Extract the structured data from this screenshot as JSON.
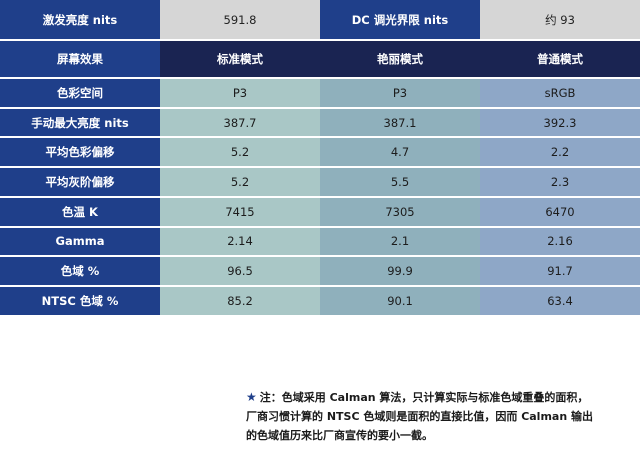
{
  "header": {
    "label1": "激发亮度 nits",
    "value1": "591.8",
    "label2": "DC 调光界限 nits",
    "value2": "约 93"
  },
  "modes": {
    "label": "屏幕效果",
    "values": [
      "标准模式",
      "艳丽模式",
      "普通模式"
    ]
  },
  "rows": [
    {
      "label": "色彩空间",
      "values": [
        "P3",
        "P3",
        "sRGB"
      ]
    },
    {
      "label": "手动最大亮度 nits",
      "values": [
        "387.7",
        "387.1",
        "392.3"
      ]
    },
    {
      "label": "平均色彩偏移",
      "values": [
        "5.2",
        "4.7",
        "2.2"
      ]
    },
    {
      "label": "平均灰阶偏移",
      "values": [
        "5.2",
        "5.5",
        "2.3"
      ]
    },
    {
      "label": "色温 K",
      "values": [
        "7415",
        "7305",
        "6470"
      ]
    },
    {
      "label": "Gamma",
      "values": [
        "2.14",
        "2.1",
        "2.16"
      ]
    },
    {
      "label": "色域 %",
      "values": [
        "96.5",
        "99.9",
        "91.7"
      ]
    },
    {
      "label": "NTSC 色域 %",
      "values": [
        "85.2",
        "90.1",
        "63.4"
      ]
    }
  ],
  "note": {
    "icon": "star-icon",
    "prefix": "注：",
    "line1": "色域采用 Calman 算法，只计算实际与标准色域重叠的面积，",
    "line2": "厂商习惯计算的 NTSC 色域则是面积的直接比值，因而 Calman 输出",
    "line3": "的色域值历来比厂商宣传的要小一截。"
  }
}
